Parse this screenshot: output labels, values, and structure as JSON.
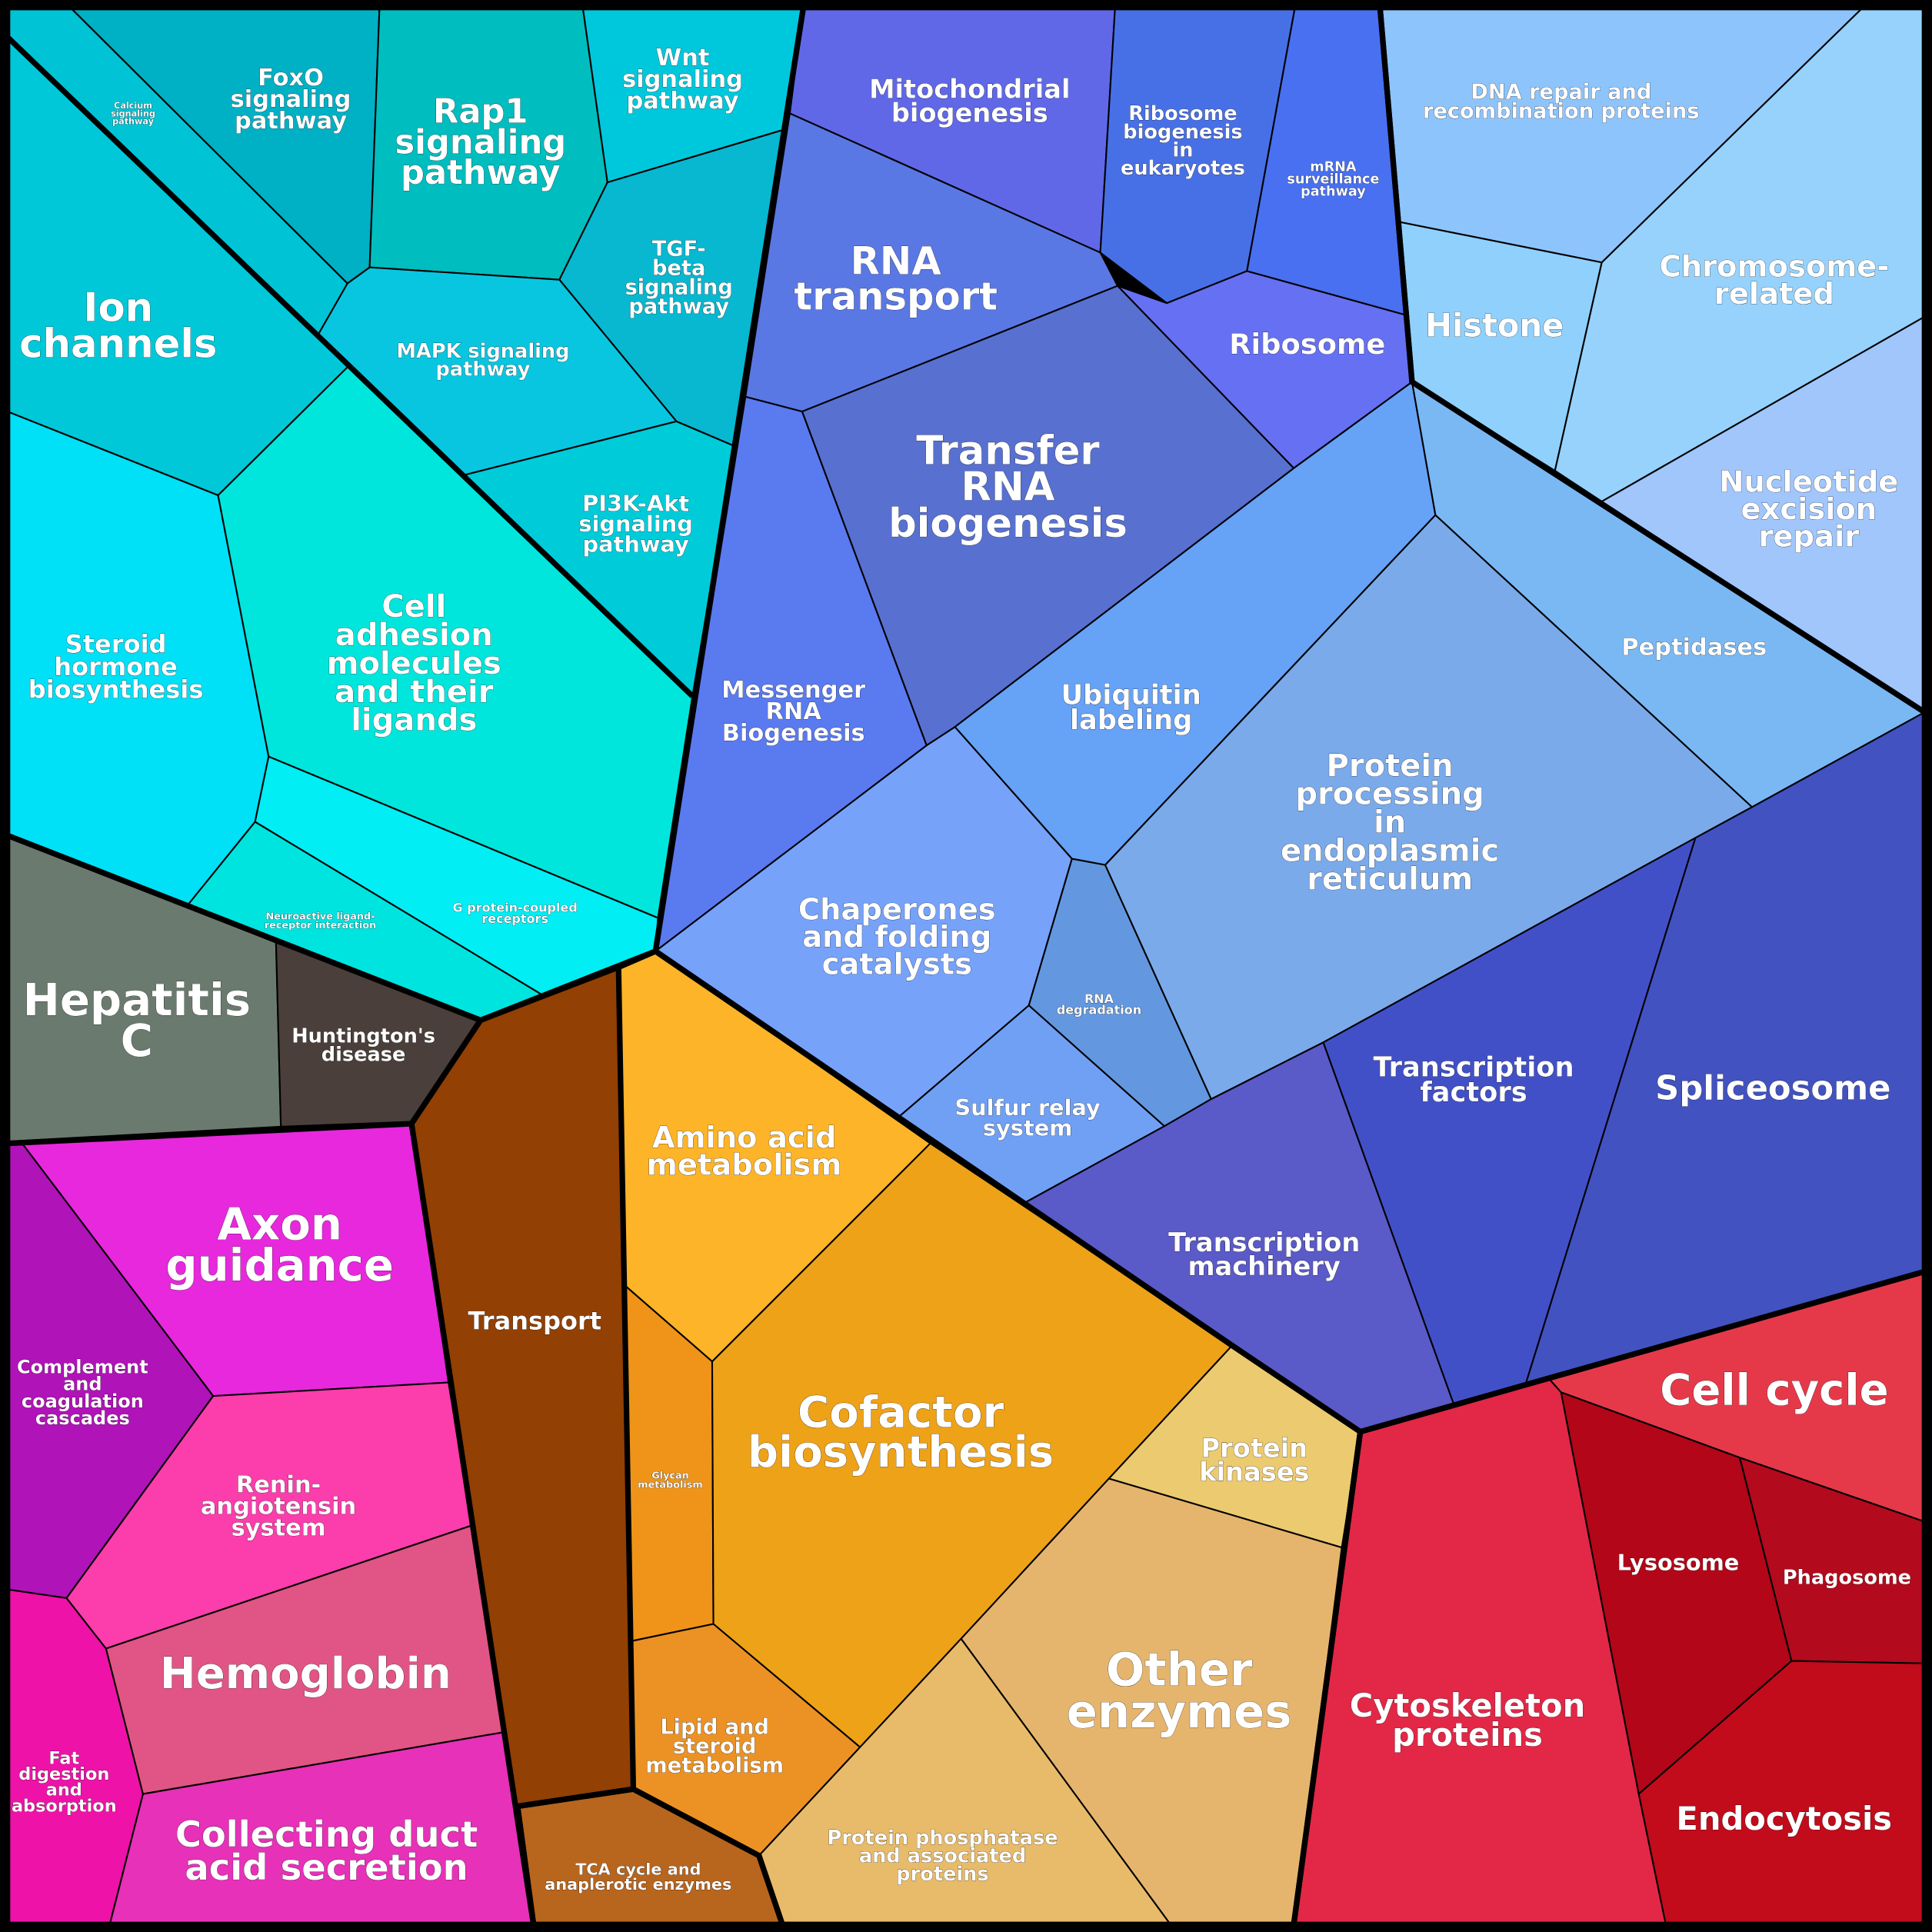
{
  "cells": [
    {
      "lines": [
        "Calcium",
        "signaling",
        "pathway"
      ],
      "color": "#00c4d6"
    },
    {
      "lines": [
        "FoxO",
        "signaling",
        "pathway"
      ],
      "color": "#00b0c4"
    },
    {
      "lines": [
        "Rap1",
        "signaling",
        "pathway"
      ],
      "color": "#00bdbf"
    },
    {
      "lines": [
        "Wnt",
        "signaling",
        "pathway"
      ],
      "color": "#00c8dc"
    },
    {
      "lines": [
        "TGF-",
        "beta",
        "signaling",
        "pathway"
      ],
      "color": "#07b8d0"
    },
    {
      "lines": [
        "MAPK signaling",
        "pathway"
      ],
      "color": "#09c6e0"
    },
    {
      "lines": [
        "PI3K-Akt",
        "signaling",
        "pathway"
      ],
      "color": "#00cbd9"
    },
    {
      "lines": [
        "Ion",
        "channels"
      ],
      "color": "#00c8d8"
    },
    {
      "lines": [
        "Steroid",
        "hormone",
        "biosynthesis"
      ],
      "color": "#00e0f6"
    },
    {
      "lines": [
        "Cell",
        "adhesion",
        "molecules",
        "and their",
        "ligands"
      ],
      "color": "#00e6dc"
    },
    {
      "lines": [
        "G protein-coupled",
        "receptors"
      ],
      "color": "#00eef4"
    },
    {
      "lines": [
        "Neuroactive ligand-",
        "receptor interaction"
      ],
      "color": "#00e4e0"
    },
    {
      "lines": [
        "Hepatitis",
        "C"
      ],
      "color": "#6b7a6e"
    },
    {
      "lines": [
        "Huntington's",
        "disease"
      ],
      "color": "#4a3f3a"
    },
    {
      "lines": [
        "Axon",
        "guidance"
      ],
      "color": "#e728dd"
    },
    {
      "lines": [
        "Complement",
        "and",
        "coagulation",
        "cascades"
      ],
      "color": "#b013b8"
    },
    {
      "lines": [
        "Renin-",
        "angiotensin",
        "system"
      ],
      "color": "#fc3dac"
    },
    {
      "lines": [
        "Hemoglobin"
      ],
      "color": "#e05585"
    },
    {
      "lines": [
        "Collecting duct",
        "acid secretion"
      ],
      "color": "#e631b8"
    },
    {
      "lines": [
        "Fat",
        "digestion",
        "and",
        "absorption"
      ],
      "color": "#ef12a8"
    },
    {
      "lines": [
        "Transport"
      ],
      "color": "#924003"
    },
    {
      "lines": [
        "TCA cycle and",
        "anaplerotic enzymes"
      ],
      "color": "#b8651e"
    },
    {
      "lines": [
        "Amino acid",
        "metabolism"
      ],
      "color": "#fdb428"
    },
    {
      "lines": [
        "Glycan",
        "metabolism"
      ],
      "color": "#ef9418"
    },
    {
      "lines": [
        "Cofactor",
        "biosynthesis"
      ],
      "color": "#eea218"
    },
    {
      "lines": [
        "Lipid and",
        "steroid",
        "metabolism"
      ],
      "color": "#ec9224"
    },
    {
      "lines": [
        "Protein",
        "kinases"
      ],
      "color": "#ecca70"
    },
    {
      "lines": [
        "Other",
        "enzymes"
      ],
      "color": "#e5b56e"
    },
    {
      "lines": [
        "Protein phosphatase",
        "and associated",
        "proteins"
      ],
      "color": "#e8bb6a"
    },
    {
      "lines": [
        "Cell cycle"
      ],
      "color": "#e5394a"
    },
    {
      "lines": [
        "Cytoskeleton",
        "proteins"
      ],
      "color": "#e32747"
    },
    {
      "lines": [
        "Lysosome"
      ],
      "color": "#b30618"
    },
    {
      "lines": [
        "Phagosome"
      ],
      "color": "#b30a1e"
    },
    {
      "lines": [
        "Endocytosis"
      ],
      "color": "#c20b1b"
    },
    {
      "lines": [
        "Mitochondrial",
        "biogenesis"
      ],
      "color": "#6068e8"
    },
    {
      "lines": [
        "Ribosome",
        "biogenesis",
        "in",
        "eukaryotes"
      ],
      "color": "#4870e6"
    },
    {
      "lines": [
        "mRNA",
        "surveillance",
        "pathway"
      ],
      "color": "#4870f0"
    },
    {
      "lines": [
        "RNA",
        "transport"
      ],
      "color": "#5a78e4"
    },
    {
      "lines": [
        "Ribosome"
      ],
      "color": "#6670f2"
    },
    {
      "lines": [
        "Transfer",
        "RNA",
        "biogenesis"
      ],
      "color": "#5870d0"
    },
    {
      "lines": [
        "Messenger",
        "RNA",
        "Biogenesis"
      ],
      "color": "#5a7af0"
    },
    {
      "lines": [
        "Ubiquitin",
        "labeling"
      ],
      "color": "#66a2f6"
    },
    {
      "lines": [
        "Chaperones",
        "and folding",
        "catalysts"
      ],
      "color": "#76a2fa"
    },
    {
      "lines": [
        "RNA",
        "degradation"
      ],
      "color": "#6398e0"
    },
    {
      "lines": [
        "Sulfur relay",
        "system"
      ],
      "color": "#70a0f4"
    },
    {
      "lines": [
        "Protein",
        "processing",
        "in",
        "endoplasmic",
        "reticulum"
      ],
      "color": "#7aaaea"
    },
    {
      "lines": [
        "Peptidases"
      ],
      "color": "#7ab8f4"
    },
    {
      "lines": [
        "Transcription",
        "machinery"
      ],
      "color": "#5a5ac8"
    },
    {
      "lines": [
        "Transcription",
        "factors"
      ],
      "color": "#4250c8"
    },
    {
      "lines": [
        "Spliceosome"
      ],
      "color": "#4252c0"
    },
    {
      "lines": [
        "DNA repair and",
        "recombination proteins"
      ],
      "color": "#8ec4fc"
    },
    {
      "lines": [
        "Histone"
      ],
      "color": "#90d0fc"
    },
    {
      "lines": [
        "Chromosome-",
        "related"
      ],
      "color": "#96d2fc"
    },
    {
      "lines": [
        "Nucleotide",
        "excision",
        "repair"
      ],
      "color": "#a0c6fc"
    }
  ]
}
